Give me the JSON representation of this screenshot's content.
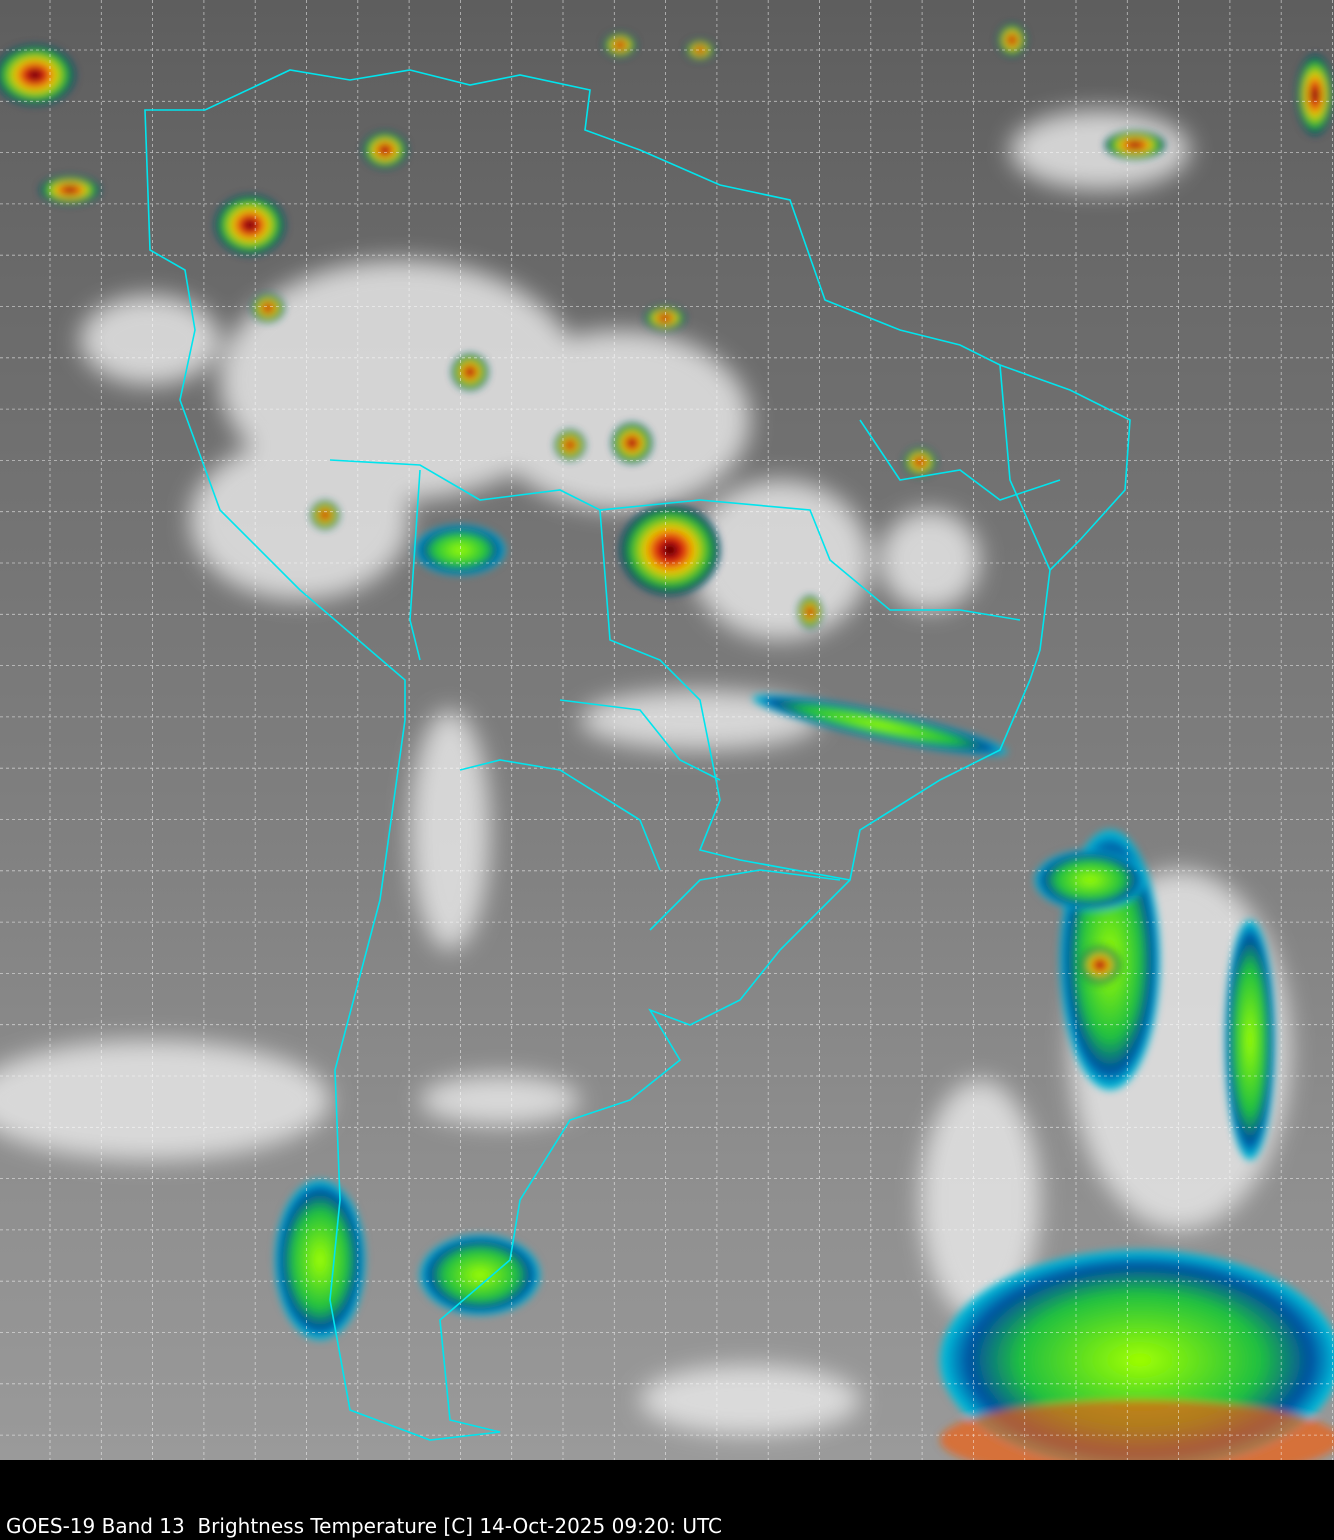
{
  "caption": "GOES-19 Band 13  Brightness Temperature [C] 14-Oct-2025 09:20: UTC",
  "colors": {
    "background": "#000000",
    "coastline": "#00e5ee",
    "grid": "#ffffff",
    "clear_sky": "#7a7a7a",
    "cloud": "#e8e8e8"
  }
}
